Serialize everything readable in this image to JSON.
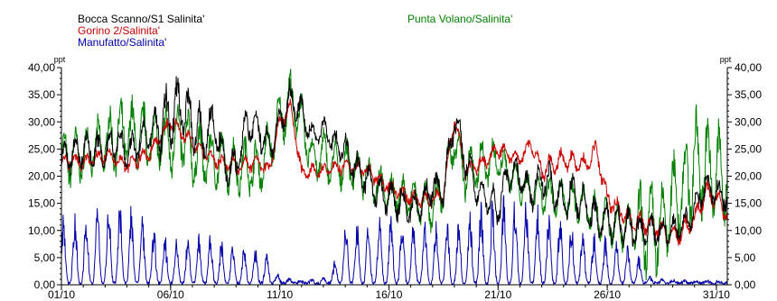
{
  "chart_data": {
    "type": "line",
    "ylim": [
      0,
      40
    ],
    "yticks": [
      "0,00",
      "5,00",
      "10,00",
      "15,00",
      "20,00",
      "25,00",
      "30,00",
      "35,00",
      "40,00"
    ],
    "yunit_left": "ppt",
    "yunit_right": "ppt",
    "xlim": [
      1,
      31.5
    ],
    "xticks": [
      {
        "day": 1,
        "label": "01/10"
      },
      {
        "day": 6,
        "label": "06/10"
      },
      {
        "day": 11,
        "label": "11/10"
      },
      {
        "day": 16,
        "label": "16/10"
      },
      {
        "day": 21,
        "label": "21/10"
      },
      {
        "day": 26,
        "label": "26/10"
      },
      {
        "day": 31,
        "label": "31/10"
      }
    ],
    "grid": false,
    "legend_position": "top",
    "series": [
      {
        "name": "Bocca Scanno/S1 Salinita'",
        "color": "#000000",
        "key": [
          [
            1,
            23
          ],
          [
            2,
            25
          ],
          [
            3,
            24.5
          ],
          [
            3.5,
            27
          ],
          [
            4,
            24
          ],
          [
            5,
            28
          ],
          [
            6,
            31
          ],
          [
            6.5,
            33.5
          ],
          [
            7,
            30
          ],
          [
            7.5,
            27
          ],
          [
            8,
            30
          ],
          [
            8.5,
            22
          ],
          [
            9,
            21.5
          ],
          [
            9.5,
            30
          ],
          [
            10,
            29
          ],
          [
            10.5,
            25
          ],
          [
            11,
            30
          ],
          [
            11.5,
            34
          ],
          [
            12,
            32
          ],
          [
            12.5,
            27
          ],
          [
            13,
            29
          ],
          [
            13.5,
            26
          ],
          [
            14,
            25
          ],
          [
            14.5,
            21
          ],
          [
            15,
            19
          ],
          [
            15.5,
            17
          ],
          [
            16,
            16
          ],
          [
            16.5,
            15
          ],
          [
            17,
            14
          ],
          [
            17.5,
            15
          ],
          [
            18,
            18
          ],
          [
            18.5,
            17
          ],
          [
            19,
            31
          ],
          [
            19.5,
            23
          ],
          [
            20,
            18
          ],
          [
            20.5,
            16
          ],
          [
            21,
            14
          ],
          [
            21.5,
            21
          ],
          [
            22,
            20
          ],
          [
            22.5,
            17
          ],
          [
            23,
            20
          ],
          [
            23.5,
            18
          ],
          [
            24,
            15
          ],
          [
            24.5,
            17
          ],
          [
            25,
            14
          ],
          [
            25.5,
            12
          ],
          [
            26,
            12
          ],
          [
            26.5,
            11
          ],
          [
            27,
            10.5
          ],
          [
            27.5,
            10
          ],
          [
            28,
            10
          ],
          [
            28.5,
            9.5
          ],
          [
            29,
            10
          ],
          [
            29.5,
            11
          ],
          [
            30,
            14
          ],
          [
            30.5,
            18
          ],
          [
            31,
            17
          ],
          [
            31.5,
            16
          ]
        ],
        "amp": [
          2.5,
          3,
          4.5,
          3,
          2.5,
          2,
          2.5,
          2.5,
          2.5,
          2.5,
          3,
          3,
          2,
          2
        ]
      },
      {
        "name": "Gorino 2/Salinita'",
        "color": "#cc0000",
        "key": [
          [
            1,
            23
          ],
          [
            2,
            22.5
          ],
          [
            3,
            24
          ],
          [
            4,
            22
          ],
          [
            5,
            24
          ],
          [
            6,
            30
          ],
          [
            6.5,
            28
          ],
          [
            7,
            26
          ],
          [
            8,
            23
          ],
          [
            9,
            22
          ],
          [
            10,
            22.5
          ],
          [
            10.5,
            21
          ],
          [
            11,
            30
          ],
          [
            11.5,
            33
          ],
          [
            12,
            20.5
          ],
          [
            13,
            21
          ],
          [
            14,
            22
          ],
          [
            15,
            21
          ],
          [
            16,
            18
          ],
          [
            17,
            16
          ],
          [
            18,
            15.5
          ],
          [
            18.5,
            17
          ],
          [
            19,
            31
          ],
          [
            19.5,
            21
          ],
          [
            20,
            22
          ],
          [
            20.5,
            23
          ],
          [
            21,
            25
          ],
          [
            22,
            23
          ],
          [
            22.5,
            26
          ],
          [
            23,
            21
          ],
          [
            24,
            23
          ],
          [
            25,
            22
          ],
          [
            25.5,
            25
          ],
          [
            26,
            16
          ],
          [
            27,
            12
          ],
          [
            28,
            11
          ],
          [
            28.5,
            10
          ],
          [
            29,
            9
          ],
          [
            29.5,
            10
          ],
          [
            30,
            12
          ],
          [
            30.5,
            17
          ],
          [
            31,
            16
          ],
          [
            31.5,
            13
          ]
        ],
        "amp": [
          1,
          1,
          1,
          1,
          1,
          1,
          1,
          1,
          1,
          1,
          1.5,
          1.5,
          1.5,
          1.5
        ]
      },
      {
        "name": "Punta Volano/Salinita'",
        "color": "#008000",
        "key": [
          [
            1,
            23
          ],
          [
            2,
            24
          ],
          [
            3,
            26
          ],
          [
            4,
            28
          ],
          [
            5,
            27
          ],
          [
            6,
            26
          ],
          [
            6.5,
            28
          ],
          [
            7,
            24
          ],
          [
            8,
            23
          ],
          [
            9,
            21.5
          ],
          [
            9.5,
            22
          ],
          [
            10,
            21
          ],
          [
            10.5,
            25
          ],
          [
            11,
            30
          ],
          [
            11.5,
            34.5
          ],
          [
            12,
            30
          ],
          [
            12.5,
            23
          ],
          [
            13,
            24
          ],
          [
            13.5,
            22
          ],
          [
            14,
            22
          ],
          [
            15,
            20
          ],
          [
            16,
            17
          ],
          [
            17,
            16
          ],
          [
            18,
            14
          ],
          [
            18.5,
            18
          ],
          [
            19,
            27
          ],
          [
            19.5,
            20
          ],
          [
            20,
            22
          ],
          [
            21,
            23
          ],
          [
            21.5,
            21
          ],
          [
            22,
            18
          ],
          [
            23,
            17
          ],
          [
            24,
            16
          ],
          [
            25,
            14
          ],
          [
            26,
            12
          ],
          [
            26.5,
            11
          ],
          [
            27,
            11
          ],
          [
            27.5,
            10
          ],
          [
            28,
            10.5
          ],
          [
            28.5,
            10
          ],
          [
            29,
            16
          ],
          [
            29.5,
            18
          ],
          [
            30,
            22
          ],
          [
            30.5,
            22
          ],
          [
            31,
            20
          ],
          [
            31.5,
            20
          ]
        ],
        "amp": [
          4,
          5,
          5,
          4,
          4,
          3.5,
          3,
          3,
          3.5,
          2.5,
          3,
          3.5,
          6.5,
          7.5
        ]
      },
      {
        "name": "Manufatto/Salinita'",
        "color": "#0000aa",
        "env": [
          [
            1,
            13
          ],
          [
            2,
            13
          ],
          [
            3,
            16
          ],
          [
            4,
            15
          ],
          [
            5,
            12
          ],
          [
            6,
            8
          ],
          [
            7,
            9
          ],
          [
            8,
            9
          ],
          [
            9,
            7
          ],
          [
            10,
            7
          ],
          [
            10.5,
            6
          ],
          [
            11,
            1
          ],
          [
            12,
            0.5
          ],
          [
            13,
            1
          ],
          [
            13.5,
            4
          ],
          [
            14,
            13
          ],
          [
            15,
            12
          ],
          [
            16,
            13
          ],
          [
            17,
            13
          ],
          [
            18,
            13
          ],
          [
            19,
            12
          ],
          [
            19.5,
            13
          ],
          [
            20,
            16
          ],
          [
            21,
            16
          ],
          [
            22,
            17
          ],
          [
            23,
            15
          ],
          [
            24,
            13
          ],
          [
            25,
            10
          ],
          [
            26,
            9
          ],
          [
            27,
            7
          ],
          [
            27.5,
            5
          ],
          [
            28,
            1
          ],
          [
            29,
            0.5
          ],
          [
            30,
            0.5
          ],
          [
            31,
            0.5
          ],
          [
            31.5,
            0.3
          ]
        ]
      }
    ]
  }
}
